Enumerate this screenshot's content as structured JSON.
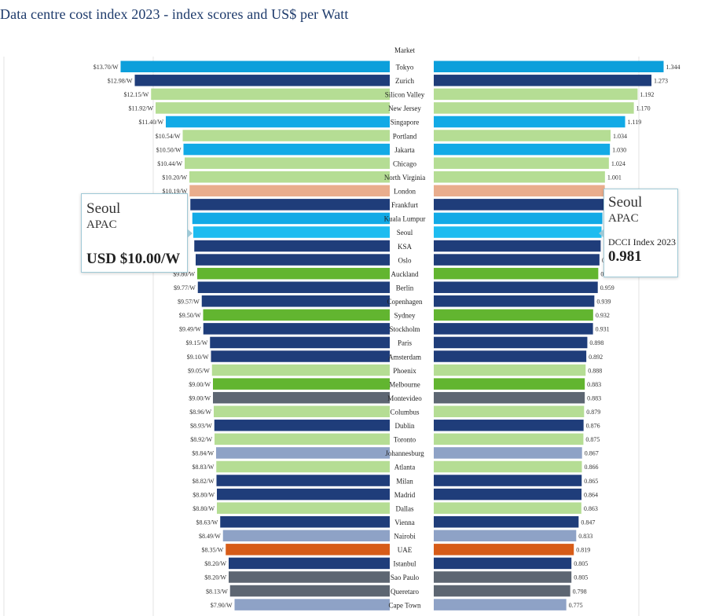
{
  "chart_data": {
    "type": "bar",
    "title": "Data centre cost index 2023 - index scores and US$ per Watt",
    "column_header": "Market",
    "left_series_name": "US$ per Watt",
    "right_series_name": "DCCI Index 2023",
    "colors": {
      "Japan": "#0c9fdb",
      "Europe": "#1f3d7a",
      "Americas": "#b5dd94",
      "APAC": "#12aae6",
      "London": "#e9ad8d",
      "Seoul": "#1ebcf0",
      "Oceania": "#62b530",
      "LatAm": "#5d6672",
      "Africa": "#8ea2c6",
      "UAE": "#d75c18"
    },
    "markets": [
      {
        "name": "Tokyo",
        "usd": 13.7,
        "usd_label": "$13.70/W",
        "index": 1.344,
        "index_label": "1.344",
        "group": "Japan"
      },
      {
        "name": "Zurich",
        "usd": 12.98,
        "usd_label": "$12.98/W",
        "index": 1.273,
        "index_label": "1.273",
        "group": "Europe"
      },
      {
        "name": "Silicon Valley",
        "usd": 12.15,
        "usd_label": "$12.15/W",
        "index": 1.192,
        "index_label": "1.192",
        "group": "Americas"
      },
      {
        "name": "New Jersey",
        "usd": 11.92,
        "usd_label": "$11.92/W",
        "index": 1.17,
        "index_label": "1.170",
        "group": "Americas"
      },
      {
        "name": "Singapore",
        "usd": 11.4,
        "usd_label": "$11.40/W",
        "index": 1.119,
        "index_label": "1.119",
        "group": "APAC"
      },
      {
        "name": "Portland",
        "usd": 10.54,
        "usd_label": "$10.54/W",
        "index": 1.034,
        "index_label": "1.034",
        "group": "Americas"
      },
      {
        "name": "Jakarta",
        "usd": 10.5,
        "usd_label": "$10.50/W",
        "index": 1.03,
        "index_label": "1.030",
        "group": "APAC"
      },
      {
        "name": "Chicago",
        "usd": 10.44,
        "usd_label": "$10.44/W",
        "index": 1.024,
        "index_label": "1.024",
        "group": "Americas"
      },
      {
        "name": "North Virginia",
        "usd": 10.2,
        "usd_label": "$10.20/W",
        "index": 1.001,
        "index_label": "1.001",
        "group": "Americas"
      },
      {
        "name": "London",
        "usd": 10.19,
        "usd_label": "$10.19/W",
        "index": 1.0,
        "index_label": "",
        "group": "London"
      },
      {
        "name": "Frankfurt",
        "usd": 10.15,
        "usd_label": "",
        "index": 0.996,
        "index_label": "",
        "group": "Europe"
      },
      {
        "name": "Kuala Lumpur",
        "usd": 10.05,
        "usd_label": "",
        "index": 0.986,
        "index_label": "",
        "group": "APAC"
      },
      {
        "name": "Seoul",
        "usd": 10.0,
        "usd_label": "",
        "index": 0.981,
        "index_label": "",
        "group": "Seoul"
      },
      {
        "name": "KSA",
        "usd": 9.95,
        "usd_label": "",
        "index": 0.976,
        "index_label": "",
        "group": "Europe"
      },
      {
        "name": "Oslo",
        "usd": 9.88,
        "usd_label": "",
        "index": 0.969,
        "index_label": "0.",
        "group": "Europe"
      },
      {
        "name": "Auckland",
        "usd": 9.8,
        "usd_label": "$9.80/W",
        "index": 0.962,
        "index_label": "0.",
        "group": "Oceania"
      },
      {
        "name": "Berlin",
        "usd": 9.77,
        "usd_label": "$9.77/W",
        "index": 0.959,
        "index_label": "0.959",
        "group": "Europe"
      },
      {
        "name": "Copenhagen",
        "usd": 9.57,
        "usd_label": "$9.57/W",
        "index": 0.939,
        "index_label": "0.939",
        "group": "Europe"
      },
      {
        "name": "Sydney",
        "usd": 9.5,
        "usd_label": "$9.50/W",
        "index": 0.932,
        "index_label": "0.932",
        "group": "Oceania"
      },
      {
        "name": "Stockholm",
        "usd": 9.49,
        "usd_label": "$9.49/W",
        "index": 0.931,
        "index_label": "0.931",
        "group": "Europe"
      },
      {
        "name": "Paris",
        "usd": 9.15,
        "usd_label": "$9.15/W",
        "index": 0.898,
        "index_label": "0.898",
        "group": "Europe"
      },
      {
        "name": "Amsterdam",
        "usd": 9.1,
        "usd_label": "$9.10/W",
        "index": 0.892,
        "index_label": "0.892",
        "group": "Europe"
      },
      {
        "name": "Phoenix",
        "usd": 9.05,
        "usd_label": "$9.05/W",
        "index": 0.888,
        "index_label": "0.888",
        "group": "Americas"
      },
      {
        "name": "Melbourne",
        "usd": 9.0,
        "usd_label": "$9.00/W",
        "index": 0.883,
        "index_label": "0.883",
        "group": "Oceania"
      },
      {
        "name": "Montevideo",
        "usd": 9.0,
        "usd_label": "$9.00/W",
        "index": 0.883,
        "index_label": "0.883",
        "group": "LatAm"
      },
      {
        "name": "Columbus",
        "usd": 8.96,
        "usd_label": "$8.96/W",
        "index": 0.879,
        "index_label": "0.879",
        "group": "Americas"
      },
      {
        "name": "Dublin",
        "usd": 8.93,
        "usd_label": "$8.93/W",
        "index": 0.876,
        "index_label": "0.876",
        "group": "Europe"
      },
      {
        "name": "Toronto",
        "usd": 8.92,
        "usd_label": "$8.92/W",
        "index": 0.875,
        "index_label": "0.875",
        "group": "Americas"
      },
      {
        "name": "Johannesburg",
        "usd": 8.84,
        "usd_label": "$8.84/W",
        "index": 0.867,
        "index_label": "0.867",
        "group": "Africa"
      },
      {
        "name": "Atlanta",
        "usd": 8.83,
        "usd_label": "$8.83/W",
        "index": 0.866,
        "index_label": "0.866",
        "group": "Americas"
      },
      {
        "name": "Milan",
        "usd": 8.82,
        "usd_label": "$8.82/W",
        "index": 0.865,
        "index_label": "0.865",
        "group": "Europe"
      },
      {
        "name": "Madrid",
        "usd": 8.8,
        "usd_label": "$8.80/W",
        "index": 0.864,
        "index_label": "0.864",
        "group": "Europe"
      },
      {
        "name": "Dallas",
        "usd": 8.8,
        "usd_label": "$8.80/W",
        "index": 0.863,
        "index_label": "0.863",
        "group": "Americas"
      },
      {
        "name": "Vienna",
        "usd": 8.63,
        "usd_label": "$8.63/W",
        "index": 0.847,
        "index_label": "0.847",
        "group": "Europe"
      },
      {
        "name": "Nairobi",
        "usd": 8.49,
        "usd_label": "$8.49/W",
        "index": 0.833,
        "index_label": "0.833",
        "group": "Africa"
      },
      {
        "name": "UAE",
        "usd": 8.35,
        "usd_label": "$8.35/W",
        "index": 0.819,
        "index_label": "0.819",
        "group": "UAE"
      },
      {
        "name": "Istanbul",
        "usd": 8.2,
        "usd_label": "$8.20/W",
        "index": 0.805,
        "index_label": "0.805",
        "group": "Europe"
      },
      {
        "name": "Sao Paulo",
        "usd": 8.2,
        "usd_label": "$8.20/W",
        "index": 0.805,
        "index_label": "0.805",
        "group": "LatAm"
      },
      {
        "name": "Queretaro",
        "usd": 8.13,
        "usd_label": "$8.13/W",
        "index": 0.798,
        "index_label": "0.798",
        "group": "LatAm"
      },
      {
        "name": "Cape Town",
        "usd": 7.9,
        "usd_label": "$7.90/W",
        "index": 0.775,
        "index_label": "0.775",
        "group": "Africa"
      }
    ]
  },
  "tooltip_left": {
    "market": "Seoul",
    "region": "APAC",
    "value": "USD $10.00/W"
  },
  "tooltip_right": {
    "market": "Seoul",
    "region": "APAC",
    "label": "DCCI Index 2023",
    "value": "0.981"
  }
}
